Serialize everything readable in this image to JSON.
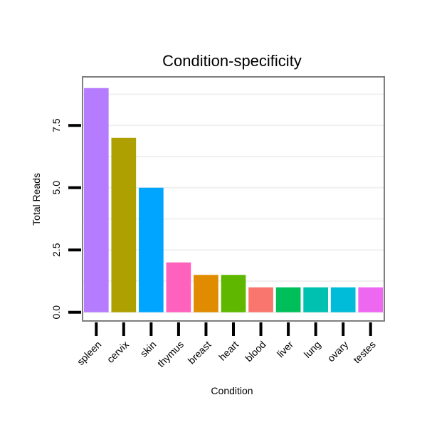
{
  "chart_data": {
    "type": "bar",
    "title": "Condition-specificity",
    "xlabel": "Condition",
    "ylabel": "Total Reads",
    "categories": [
      "spleen",
      "cervix",
      "skin",
      "thymus",
      "breast",
      "heart",
      "blood",
      "liver",
      "lung",
      "ovary",
      "testes"
    ],
    "values": [
      9,
      7,
      5,
      2,
      1.5,
      1.5,
      1,
      1,
      1,
      1,
      1
    ],
    "colors": [
      "#b57cff",
      "#ada000",
      "#00a5ff",
      "#ff62bc",
      "#e08b00",
      "#5fb700",
      "#f8766d",
      "#00bf5a",
      "#00c0b0",
      "#00bcd8",
      "#ee67f1"
    ],
    "ylim": [
      -0.35,
      9.45
    ],
    "yticks": [
      0,
      2.5,
      5,
      7.5
    ],
    "ytick_labels": [
      "0.0",
      "2.5",
      "5.0",
      "7.5"
    ],
    "grid": true,
    "legend": "none"
  }
}
